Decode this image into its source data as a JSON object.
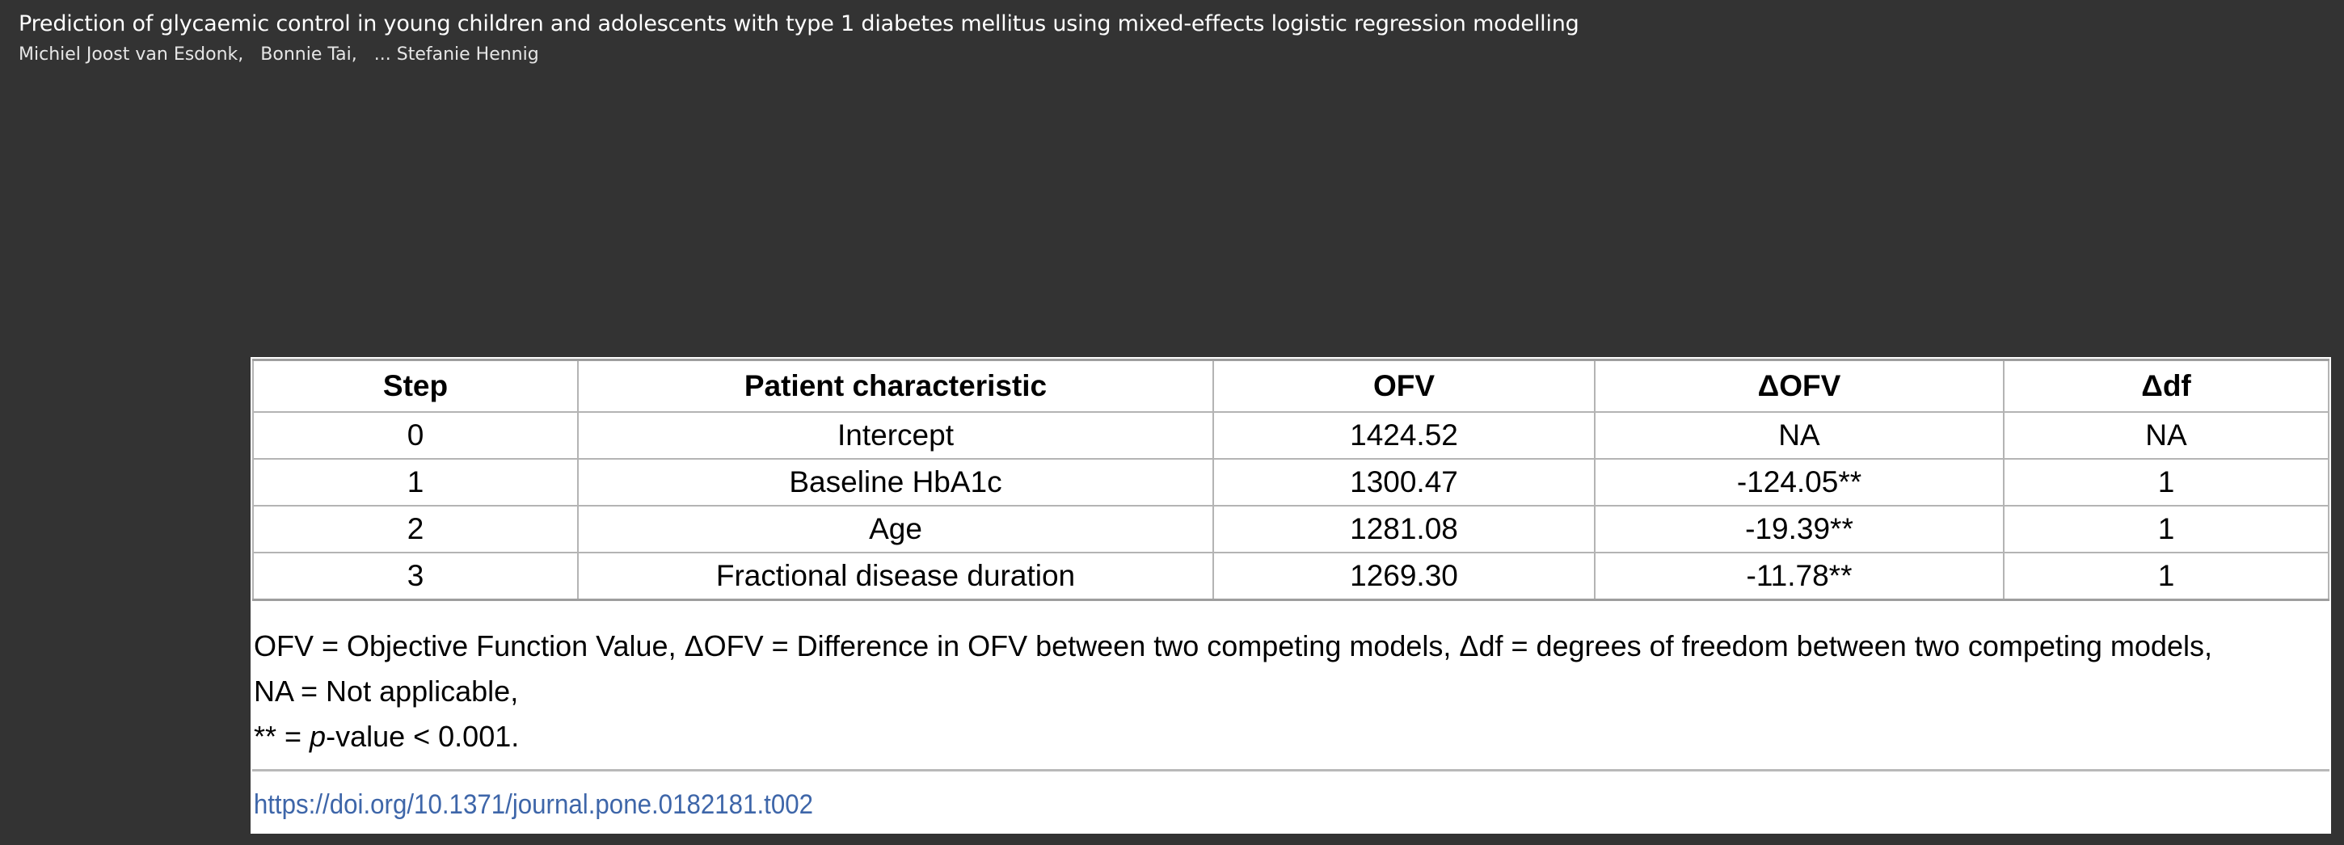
{
  "article": {
    "title": "Prediction of glycaemic control in young children and adolescents with type 1 diabetes mellitus using mixed-effects logistic regression modelling",
    "authors": [
      "Michiel Joost van Esdonk,",
      "Bonnie Tai,",
      "... Stefanie Hennig"
    ]
  },
  "table": {
    "headers": [
      "Step",
      "Patient characteristic",
      "OFV",
      "ΔOFV",
      "Δdf"
    ],
    "rows": [
      [
        "0",
        "Intercept",
        "1424.52",
        "NA",
        "NA"
      ],
      [
        "1",
        "Baseline HbA1c",
        "1300.47",
        "-124.05**",
        "1"
      ],
      [
        "2",
        "Age",
        "1281.08",
        "-19.39**",
        "1"
      ],
      [
        "3",
        "Fractional disease duration",
        "1269.30",
        "-11.78**",
        "1"
      ]
    ]
  },
  "footnote": {
    "line1": "OFV = Objective Function Value, ΔOFV = Difference in OFV between two competing models, Δdf = degrees of freedom between two competing models,",
    "line2": "NA = Not applicable,",
    "line3_prefix": "** = ",
    "line3_italic": "p",
    "line3_suffix": "-value < 0.001."
  },
  "doi": {
    "text": "https://doi.org/10.1371/journal.pone.0182181.t002"
  }
}
